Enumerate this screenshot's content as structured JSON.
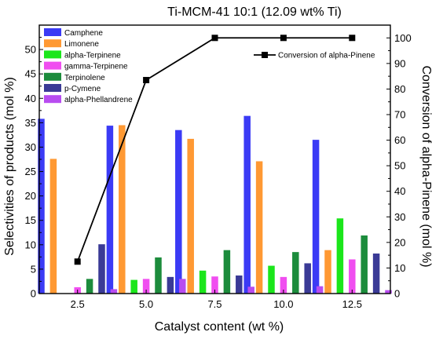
{
  "chart_data": {
    "type": "bar",
    "title": "Ti-MCM-41 10:1 (12.09 wt% Ti)",
    "xlabel": "Catalyst content (wt %)",
    "ylabel": "Selectivities of products (mol %)",
    "y2label": "Conversion of alpha-Pinene (mol %)",
    "categories": [
      "2.5",
      "5.0",
      "7.5",
      "10.0",
      "12.5"
    ],
    "ylim": [
      0,
      55
    ],
    "y2lim": [
      0,
      105
    ],
    "yticks": [
      "0",
      "5",
      "10",
      "15",
      "20",
      "25",
      "30",
      "35",
      "40",
      "45",
      "50"
    ],
    "y2ticks": [
      "0",
      "10",
      "20",
      "30",
      "40",
      "50",
      "60",
      "70",
      "80",
      "90",
      "100"
    ],
    "series": [
      {
        "name": "Camphene",
        "color": "#3b3bf5",
        "values": [
          35.8,
          34.4,
          33.5,
          36.4,
          31.5
        ]
      },
      {
        "name": "Limonene",
        "color": "#ff9933",
        "values": [
          27.6,
          34.5,
          31.7,
          27.1,
          8.9
        ]
      },
      {
        "name": "alpha-Terpinene",
        "color": "#1be61b",
        "values": [
          0,
          2.8,
          4.7,
          5.7,
          15.4
        ]
      },
      {
        "name": "gamma-Terpinene",
        "color": "#f04ef0",
        "values": [
          1.3,
          3.0,
          3.5,
          3.4,
          7.0
        ]
      },
      {
        "name": "Terpinolene",
        "color": "#1c8c3c",
        "values": [
          3.0,
          7.4,
          8.9,
          8.5,
          11.9
        ]
      },
      {
        "name": "p-Cymene",
        "color": "#3a3a96",
        "values": [
          10.1,
          3.4,
          3.7,
          6.2,
          8.2
        ]
      },
      {
        "name": "alpha-Phellandrene",
        "color": "#b84cf0",
        "values": [
          0.9,
          3.0,
          1.4,
          1.5,
          0.7
        ]
      }
    ],
    "line_series": {
      "name": "Conversion of alpha-Pinene",
      "axis": "right",
      "color": "#000000",
      "values": [
        12.5,
        83.5,
        100,
        100,
        100
      ]
    },
    "legend_position": "top-left",
    "line_legend_position": "top-right",
    "grid": false
  }
}
